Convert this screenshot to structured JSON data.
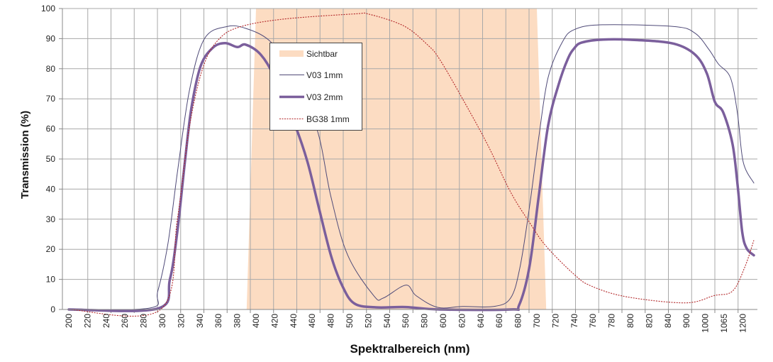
{
  "chart_data": {
    "type": "line",
    "title": "",
    "xlabel": "Spektralbereich (nm)",
    "ylabel": "Transmission (%)",
    "ylim": [
      0,
      100
    ],
    "yticks": [
      0,
      10,
      20,
      30,
      40,
      50,
      60,
      70,
      80,
      90,
      100
    ],
    "x_tick_labels": [
      "200",
      "220",
      "240",
      "260",
      "280",
      "300",
      "320",
      "340",
      "360",
      "380",
      "400",
      "420",
      "440",
      "460",
      "480",
      "500",
      "520",
      "540",
      "560",
      "580",
      "600",
      "620",
      "640",
      "660",
      "680",
      "700",
      "720",
      "740",
      "760",
      "780",
      "800",
      "820",
      "840",
      "900",
      "1000",
      "1065",
      "1200"
    ],
    "x_axis_note": "category axis: equal spacing per tick label",
    "grid": true,
    "legend": {
      "position": "inside-top-center",
      "entries": [
        "Sichtbar",
        "V03 1mm",
        "V03 2mm",
        "BG38 1mm"
      ]
    },
    "series": [
      {
        "name": "Sichtbar",
        "kind": "area",
        "color": "#fcdcc2",
        "points": [
          [
            390,
            0
          ],
          [
            400,
            100
          ],
          [
            700,
            100
          ],
          [
            710,
            0
          ]
        ]
      },
      {
        "name": "V03 1mm",
        "kind": "line",
        "color": "#4f4a78",
        "style": "thin",
        "points": [
          [
            200,
            0
          ],
          [
            287,
            0.5
          ],
          [
            295,
            6
          ],
          [
            306,
            22
          ],
          [
            316,
            45.5
          ],
          [
            329,
            73
          ],
          [
            345,
            90
          ],
          [
            369,
            94
          ],
          [
            389,
            93.4
          ],
          [
            414,
            89.4
          ],
          [
            437,
            80
          ],
          [
            465,
            60
          ],
          [
            480,
            37.5
          ],
          [
            498,
            18
          ],
          [
            526,
            4.5
          ],
          [
            536,
            3.8
          ],
          [
            560,
            8.1
          ],
          [
            571,
            4.6
          ],
          [
            594,
            0.7
          ],
          [
            621,
            1
          ],
          [
            654,
            1
          ],
          [
            672,
            3.8
          ],
          [
            682,
            14
          ],
          [
            692,
            33.7
          ],
          [
            702,
            57
          ],
          [
            712,
            77
          ],
          [
            727,
            88.7
          ],
          [
            740,
            93
          ],
          [
            770,
            94.6
          ],
          [
            859,
            94
          ],
          [
            945,
            91.8
          ],
          [
            1013,
            86.3
          ],
          [
            1045,
            81.6
          ],
          [
            1111,
            77
          ],
          [
            1162,
            65
          ],
          [
            1203,
            49
          ],
          [
            1280,
            42
          ]
        ]
      },
      {
        "name": "V03 2mm",
        "kind": "line",
        "color": "#7b5f9c",
        "style": "thick",
        "points": [
          [
            200,
            0
          ],
          [
            295,
            0.3
          ],
          [
            308,
            10
          ],
          [
            316,
            26
          ],
          [
            324,
            49
          ],
          [
            331,
            67
          ],
          [
            341,
            81
          ],
          [
            354,
            87
          ],
          [
            367,
            88.5
          ],
          [
            380,
            87.2
          ],
          [
            389,
            88
          ],
          [
            405,
            84.7
          ],
          [
            420,
            77
          ],
          [
            442,
            61
          ],
          [
            455,
            49
          ],
          [
            467,
            34
          ],
          [
            480,
            18
          ],
          [
            492,
            8
          ],
          [
            505,
            2
          ],
          [
            528,
            0.7
          ],
          [
            560,
            0.8
          ],
          [
            596,
            0
          ],
          [
            672,
            0
          ],
          [
            681,
            1.4
          ],
          [
            692,
            14
          ],
          [
            702,
            37.5
          ],
          [
            712,
            61
          ],
          [
            723,
            74.5
          ],
          [
            733,
            83.2
          ],
          [
            740,
            86.8
          ],
          [
            748,
            88.7
          ],
          [
            771,
            89.7
          ],
          [
            808,
            89.5
          ],
          [
            859,
            88.3
          ],
          [
            945,
            84.7
          ],
          [
            1005,
            78.5
          ],
          [
            1033,
            69
          ],
          [
            1062,
            65.5
          ],
          [
            1126,
            55
          ],
          [
            1162,
            41.5
          ],
          [
            1196,
            25.7
          ],
          [
            1228,
            20.3
          ],
          [
            1280,
            18
          ]
        ]
      },
      {
        "name": "BG38 1mm",
        "kind": "line",
        "color": "#b3282a",
        "style": "dotted",
        "points": [
          [
            200,
            0
          ],
          [
            298,
            0
          ],
          [
            316,
            30
          ],
          [
            329,
            61
          ],
          [
            344,
            81
          ],
          [
            361,
            90
          ],
          [
            384,
            94
          ],
          [
            430,
            96.5
          ],
          [
            505,
            98.2
          ],
          [
            521,
            98.1
          ],
          [
            558,
            94.2
          ],
          [
            583,
            88
          ],
          [
            596,
            83.2
          ],
          [
            621,
            69.8
          ],
          [
            647,
            55
          ],
          [
            672,
            39
          ],
          [
            692,
            29
          ],
          [
            710,
            21
          ],
          [
            740,
            11.6
          ],
          [
            758,
            7.8
          ],
          [
            796,
            4.2
          ],
          [
            896,
            2.2
          ],
          [
            1030,
            4.6
          ],
          [
            1126,
            6.1
          ],
          [
            1214,
            14
          ],
          [
            1280,
            23
          ]
        ]
      }
    ]
  }
}
